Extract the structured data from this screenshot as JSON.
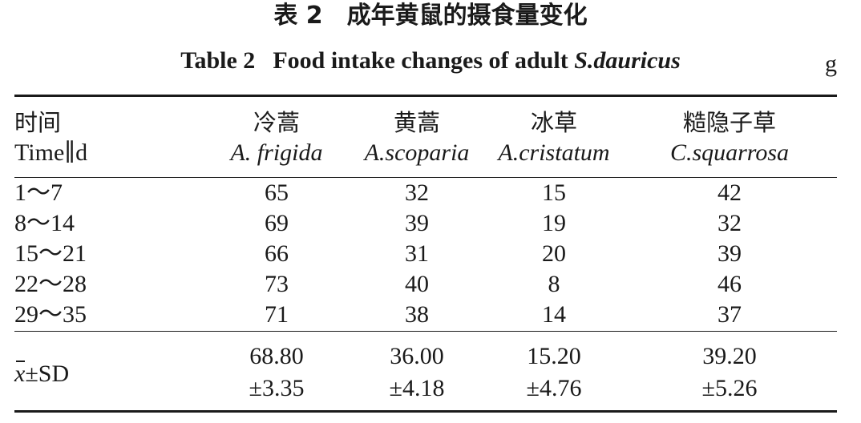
{
  "caption": {
    "cn_title": "表 2　成年黄鼠的摄食量变化",
    "en_prefix": "Table 2",
    "en_title": "Food intake changes of adult",
    "en_species": "S.dauricus",
    "unit": "g"
  },
  "header": {
    "time_cn": "时间",
    "time_en": "Time∥d",
    "columns": [
      {
        "cn": "冷蒿",
        "latin": "A. frigida"
      },
      {
        "cn": "黄蒿",
        "latin": "A.scoparia"
      },
      {
        "cn": "冰草",
        "latin": "A.cristatum"
      },
      {
        "cn": "糙隐子草",
        "latin": "C.squarrosa"
      }
    ]
  },
  "rows": [
    {
      "time": "1～7",
      "values": [
        "65",
        "32",
        "15",
        "42"
      ]
    },
    {
      "time": "8～14",
      "values": [
        "69",
        "39",
        "19",
        "32"
      ]
    },
    {
      "time": "15～21",
      "values": [
        "66",
        "31",
        "20",
        "39"
      ]
    },
    {
      "time": "22～28",
      "values": [
        "73",
        "40",
        "8",
        "46"
      ]
    },
    {
      "time": "29～35",
      "values": [
        "71",
        "38",
        "14",
        "37"
      ]
    }
  ],
  "summary": {
    "label_x": "x",
    "label_rest": "±SD",
    "means": [
      "68.80",
      "36.00",
      "15.20",
      "39.20"
    ],
    "sds": [
      "±3.35",
      "±4.18",
      "±4.76",
      "±5.26"
    ]
  }
}
